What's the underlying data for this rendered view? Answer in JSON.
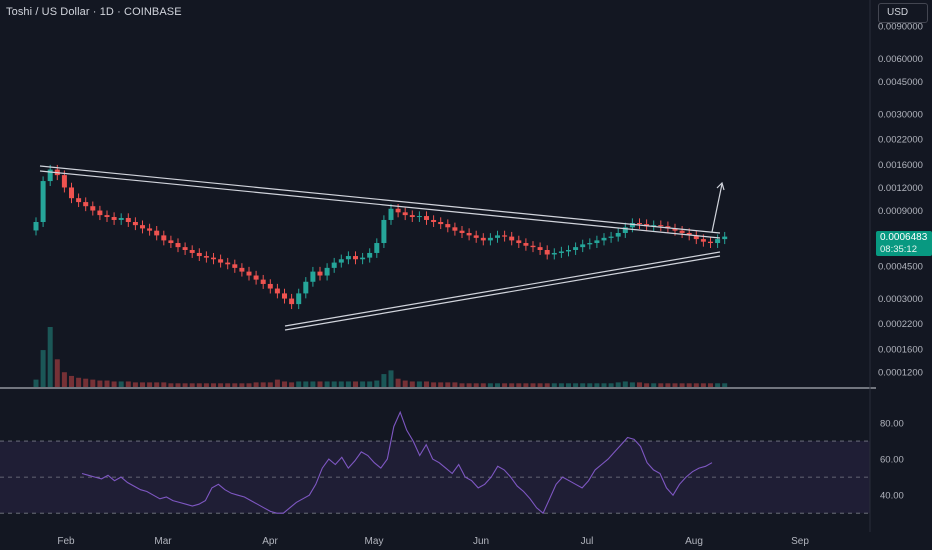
{
  "header": {
    "title": "Toshi / US Dollar · 1D · COINBASE",
    "currency_label": "USD"
  },
  "price": {
    "last": "0.0006483",
    "countdown": "08:35:12",
    "tag_color": "#089981"
  },
  "colors": {
    "background": "#131722",
    "up": "#26a69a",
    "down": "#ef5350",
    "rsi_line": "#7e57c2",
    "rsi_band": "#2a2545",
    "trendline": "#d1d4dc"
  },
  "chart_data": [
    {
      "type": "candlestick",
      "title": "",
      "x_axis": {
        "tick_labels": [
          "Feb",
          "Mar",
          "Apr",
          "May",
          "Jun",
          "Jul",
          "Aug",
          "Sep"
        ]
      },
      "y_axis": {
        "scale": "log",
        "tick_labels": [
          "0.0090000",
          "0.0060000",
          "0.0045000",
          "0.0030000",
          "0.0022000",
          "0.0016000",
          "0.0012000",
          "0.0009000",
          "0.0006000",
          "0.0004500",
          "0.0003000",
          "0.0002200",
          "0.0001600",
          "0.0001200"
        ],
        "tick_values": [
          0.009,
          0.006,
          0.0045,
          0.003,
          0.0022,
          0.0016,
          0.0012,
          0.0009,
          0.0006,
          0.00045,
          0.0003,
          0.00022,
          0.00016,
          0.00012
        ]
      },
      "series": [
        {
          "x": [
            "Jan 25",
            "Jan 27",
            "Jan 29",
            "Jan 31",
            "Feb 2",
            "Feb 4",
            "Feb 6",
            "Feb 8",
            "Feb 10",
            "Feb 12",
            "Feb 14",
            "Feb 16",
            "Feb 18",
            "Feb 20",
            "Feb 22",
            "Feb 24",
            "Feb 26",
            "Feb 28",
            "Mar 2",
            "Mar 4",
            "Mar 6",
            "Mar 8",
            "Mar 10",
            "Mar 12",
            "Mar 14",
            "Mar 16",
            "Mar 18",
            "Mar 20",
            "Mar 22",
            "Mar 24",
            "Mar 26",
            "Mar 28",
            "Mar 30",
            "Apr 1",
            "Apr 3",
            "Apr 5",
            "Apr 7",
            "Apr 9",
            "Apr 11",
            "Apr 13",
            "Apr 15",
            "Apr 17",
            "Apr 19",
            "Apr 21",
            "Apr 23",
            "Apr 25",
            "Apr 27",
            "Apr 29",
            "May 1",
            "May 3",
            "May 5",
            "May 7",
            "May 9",
            "May 11",
            "May 13",
            "May 15",
            "May 17",
            "May 19",
            "May 21",
            "May 23",
            "May 25",
            "May 27",
            "May 29",
            "May 31",
            "Jun 2",
            "Jun 4",
            "Jun 6",
            "Jun 8",
            "Jun 10",
            "Jun 12",
            "Jun 14",
            "Jun 16",
            "Jun 18",
            "Jun 20",
            "Jun 22",
            "Jun 24",
            "Jun 26",
            "Jun 28",
            "Jun 30",
            "Jul 2",
            "Jul 4",
            "Jul 6",
            "Jul 8",
            "Jul 10",
            "Jul 12",
            "Jul 14",
            "Jul 16",
            "Jul 18",
            "Jul 20",
            "Jul 22",
            "Jul 24",
            "Jul 26",
            "Jul 28",
            "Jul 30",
            "Aug 1",
            "Aug 3",
            "Aug 5",
            "Aug 7"
          ],
          "close": [
            0.00078,
            0.0013,
            0.0015,
            0.0014,
            0.0012,
            0.00105,
            0.001,
            0.00095,
            0.0009,
            0.00085,
            0.00083,
            0.0008,
            0.00082,
            0.00078,
            0.00075,
            0.00072,
            0.0007,
            0.00066,
            0.00062,
            0.0006,
            0.00057,
            0.00055,
            0.00053,
            0.00051,
            0.0005,
            0.00049,
            0.00047,
            0.00046,
            0.00044,
            0.00042,
            0.0004,
            0.00038,
            0.00036,
            0.00034,
            0.00032,
            0.0003,
            0.00028,
            0.00032,
            0.00037,
            0.00042,
            0.0004,
            0.00044,
            0.00047,
            0.00049,
            0.00051,
            0.00049,
            0.0005,
            0.00053,
            0.0006,
            0.0008,
            0.00092,
            0.00088,
            0.00085,
            0.00083,
            0.00084,
            0.0008,
            0.00078,
            0.00076,
            0.00073,
            0.0007,
            0.00068,
            0.00066,
            0.00064,
            0.00062,
            0.00064,
            0.00066,
            0.00065,
            0.00062,
            0.0006,
            0.00058,
            0.00057,
            0.00055,
            0.00052,
            0.00053,
            0.00054,
            0.00055,
            0.00057,
            0.00059,
            0.0006,
            0.00062,
            0.00064,
            0.00065,
            0.00068,
            0.00073,
            0.00077,
            0.00076,
            0.00074,
            0.00075,
            0.00074,
            0.00072,
            0.0007,
            0.00068,
            0.00066,
            0.00063,
            0.00061,
            0.0006,
            0.00063,
            0.00065
          ],
          "volume": [
            8,
            40,
            65,
            30,
            16,
            12,
            10,
            9,
            8,
            7,
            7,
            6,
            6,
            6,
            5,
            5,
            5,
            5,
            5,
            4,
            4,
            4,
            4,
            4,
            4,
            4,
            4,
            4,
            4,
            4,
            4,
            5,
            5,
            5,
            8,
            6,
            5,
            6,
            6,
            6,
            6,
            6,
            6,
            6,
            6,
            6,
            6,
            6,
            7,
            14,
            18,
            9,
            7,
            6,
            6,
            6,
            5,
            5,
            5,
            5,
            4,
            4,
            4,
            4,
            4,
            4,
            4,
            4,
            4,
            4,
            4,
            4,
            4,
            4,
            4,
            4,
            4,
            4,
            4,
            4,
            4,
            4,
            5,
            6,
            5,
            5,
            4,
            4,
            4,
            4,
            4,
            4,
            4,
            4,
            4,
            4,
            4,
            4
          ]
        }
      ],
      "annotations": [
        "descending resistance trendline",
        "ascending support trendline",
        "breakout arrow"
      ]
    },
    {
      "type": "line",
      "title": "",
      "y_axis": {
        "tick_labels": [
          "80.00",
          "60.00",
          "40.00"
        ],
        "tick_values": [
          80,
          60,
          40
        ],
        "range": [
          24,
          90
        ],
        "bands": [
          30,
          70
        ]
      },
      "series": [
        {
          "x_start": "Feb 8",
          "values": [
            52,
            51,
            50,
            49,
            51,
            48,
            50,
            47,
            45,
            43,
            42,
            40,
            38,
            39,
            37,
            36,
            35,
            34,
            35,
            37,
            44,
            46,
            43,
            41,
            40,
            39,
            37,
            35,
            33,
            31,
            30,
            30,
            33,
            36,
            38,
            40,
            46,
            55,
            60,
            57,
            61,
            55,
            59,
            64,
            62,
            58,
            55,
            60,
            78,
            86,
            76,
            70,
            62,
            68,
            60,
            58,
            55,
            52,
            57,
            50,
            48,
            44,
            46,
            50,
            56,
            54,
            50,
            45,
            42,
            38,
            33,
            30,
            38,
            46,
            50,
            48,
            46,
            44,
            48,
            54,
            57,
            60,
            64,
            68,
            72,
            71,
            67,
            58,
            54,
            52,
            44,
            40,
            46,
            50,
            53,
            55,
            56,
            58
          ]
        }
      ]
    }
  ]
}
